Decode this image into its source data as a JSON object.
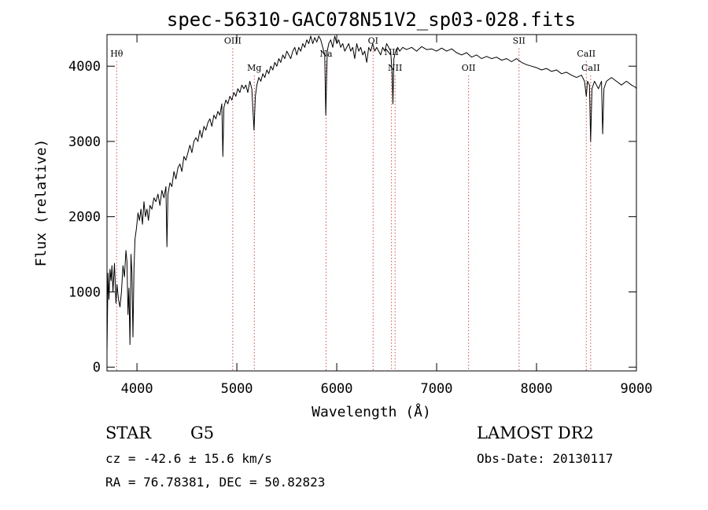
{
  "chart_data": {
    "type": "line",
    "title": "spec-56310-GAC078N51V2_sp03-028.fits",
    "xlabel": "Wavelength (Å)",
    "ylabel": "Flux (relative)",
    "xlim": [
      3700,
      9000
    ],
    "ylim": [
      -50,
      4420
    ],
    "x_ticks": [
      4000,
      5000,
      6000,
      7000,
      8000,
      9000
    ],
    "y_ticks": [
      0,
      1000,
      2000,
      3000,
      4000
    ],
    "grid": false,
    "series": [
      {
        "points": [
          [
            3700,
            200
          ],
          [
            3710,
            1250
          ],
          [
            3720,
            900
          ],
          [
            3730,
            1300
          ],
          [
            3740,
            1150
          ],
          [
            3750,
            1350
          ],
          [
            3760,
            1000
          ],
          [
            3775,
            1380
          ],
          [
            3790,
            850
          ],
          [
            3800,
            1100
          ],
          [
            3815,
            900
          ],
          [
            3830,
            800
          ],
          [
            3845,
            1000
          ],
          [
            3860,
            1350
          ],
          [
            3875,
            1200
          ],
          [
            3890,
            1550
          ],
          [
            3900,
            1400
          ],
          [
            3910,
            700
          ],
          [
            3920,
            1050
          ],
          [
            3930,
            300
          ],
          [
            3940,
            1500
          ],
          [
            3950,
            1250
          ],
          [
            3960,
            400
          ],
          [
            3970,
            1300
          ],
          [
            3980,
            1700
          ],
          [
            3995,
            1850
          ],
          [
            4010,
            2050
          ],
          [
            4025,
            1950
          ],
          [
            4040,
            2100
          ],
          [
            4055,
            1900
          ],
          [
            4070,
            2200
          ],
          [
            4085,
            2000
          ],
          [
            4100,
            2100
          ],
          [
            4115,
            1950
          ],
          [
            4130,
            2150
          ],
          [
            4150,
            2100
          ],
          [
            4170,
            2250
          ],
          [
            4190,
            2200
          ],
          [
            4210,
            2300
          ],
          [
            4230,
            2150
          ],
          [
            4250,
            2350
          ],
          [
            4270,
            2250
          ],
          [
            4290,
            2400
          ],
          [
            4300,
            1600
          ],
          [
            4310,
            2300
          ],
          [
            4330,
            2450
          ],
          [
            4350,
            2400
          ],
          [
            4370,
            2600
          ],
          [
            4390,
            2500
          ],
          [
            4410,
            2650
          ],
          [
            4430,
            2700
          ],
          [
            4450,
            2600
          ],
          [
            4470,
            2800
          ],
          [
            4490,
            2750
          ],
          [
            4510,
            2850
          ],
          [
            4530,
            2950
          ],
          [
            4550,
            2850
          ],
          [
            4570,
            3000
          ],
          [
            4590,
            3050
          ],
          [
            4610,
            3000
          ],
          [
            4630,
            3150
          ],
          [
            4650,
            3050
          ],
          [
            4670,
            3200
          ],
          [
            4690,
            3150
          ],
          [
            4710,
            3250
          ],
          [
            4730,
            3300
          ],
          [
            4750,
            3200
          ],
          [
            4770,
            3350
          ],
          [
            4790,
            3300
          ],
          [
            4810,
            3400
          ],
          [
            4830,
            3350
          ],
          [
            4850,
            3500
          ],
          [
            4860,
            2800
          ],
          [
            4870,
            3450
          ],
          [
            4890,
            3550
          ],
          [
            4910,
            3500
          ],
          [
            4930,
            3600
          ],
          [
            4950,
            3550
          ],
          [
            4970,
            3650
          ],
          [
            4990,
            3600
          ],
          [
            5010,
            3700
          ],
          [
            5030,
            3650
          ],
          [
            5050,
            3750
          ],
          [
            5070,
            3700
          ],
          [
            5090,
            3750
          ],
          [
            5110,
            3650
          ],
          [
            5130,
            3800
          ],
          [
            5150,
            3700
          ],
          [
            5172,
            3150
          ],
          [
            5185,
            3600
          ],
          [
            5200,
            3750
          ],
          [
            5220,
            3850
          ],
          [
            5240,
            3800
          ],
          [
            5260,
            3900
          ],
          [
            5280,
            3850
          ],
          [
            5300,
            3950
          ],
          [
            5320,
            3900
          ],
          [
            5340,
            4000
          ],
          [
            5360,
            3950
          ],
          [
            5380,
            4050
          ],
          [
            5400,
            4000
          ],
          [
            5420,
            4100
          ],
          [
            5440,
            4050
          ],
          [
            5460,
            4150
          ],
          [
            5480,
            4100
          ],
          [
            5500,
            4200
          ],
          [
            5520,
            4150
          ],
          [
            5540,
            4100
          ],
          [
            5560,
            4200
          ],
          [
            5580,
            4250
          ],
          [
            5600,
            4150
          ],
          [
            5620,
            4250
          ],
          [
            5640,
            4200
          ],
          [
            5660,
            4300
          ],
          [
            5680,
            4250
          ],
          [
            5700,
            4350
          ],
          [
            5720,
            4300
          ],
          [
            5740,
            4400
          ],
          [
            5760,
            4300
          ],
          [
            5780,
            4380
          ],
          [
            5800,
            4320
          ],
          [
            5820,
            4400
          ],
          [
            5840,
            4350
          ],
          [
            5860,
            4250
          ],
          [
            5880,
            4150
          ],
          [
            5890,
            3350
          ],
          [
            5896,
            3700
          ],
          [
            5905,
            4200
          ],
          [
            5920,
            4300
          ],
          [
            5940,
            4350
          ],
          [
            5960,
            4250
          ],
          [
            5980,
            4400
          ],
          [
            6000,
            4300
          ],
          [
            6020,
            4350
          ],
          [
            6040,
            4250
          ],
          [
            6060,
            4300
          ],
          [
            6080,
            4200
          ],
          [
            6100,
            4250
          ],
          [
            6120,
            4300
          ],
          [
            6140,
            4200
          ],
          [
            6160,
            4250
          ],
          [
            6180,
            4100
          ],
          [
            6200,
            4300
          ],
          [
            6220,
            4200
          ],
          [
            6240,
            4250
          ],
          [
            6260,
            4150
          ],
          [
            6280,
            4200
          ],
          [
            6300,
            4050
          ],
          [
            6320,
            4250
          ],
          [
            6340,
            4200
          ],
          [
            6360,
            4300
          ],
          [
            6380,
            4200
          ],
          [
            6400,
            4250
          ],
          [
            6420,
            4200
          ],
          [
            6440,
            4150
          ],
          [
            6460,
            4250
          ],
          [
            6480,
            4200
          ],
          [
            6500,
            4300
          ],
          [
            6520,
            4250
          ],
          [
            6540,
            4200
          ],
          [
            6555,
            3900
          ],
          [
            6563,
            3500
          ],
          [
            6572,
            4100
          ],
          [
            6590,
            4200
          ],
          [
            6610,
            4250
          ],
          [
            6630,
            4200
          ],
          [
            6660,
            4250
          ],
          [
            6700,
            4220
          ],
          [
            6750,
            4250
          ],
          [
            6800,
            4200
          ],
          [
            6850,
            4260
          ],
          [
            6900,
            4220
          ],
          [
            6950,
            4230
          ],
          [
            7000,
            4200
          ],
          [
            7050,
            4240
          ],
          [
            7100,
            4200
          ],
          [
            7150,
            4230
          ],
          [
            7200,
            4180
          ],
          [
            7250,
            4150
          ],
          [
            7300,
            4180
          ],
          [
            7350,
            4120
          ],
          [
            7400,
            4150
          ],
          [
            7450,
            4100
          ],
          [
            7500,
            4130
          ],
          [
            7550,
            4100
          ],
          [
            7600,
            4120
          ],
          [
            7650,
            4080
          ],
          [
            7700,
            4100
          ],
          [
            7750,
            4060
          ],
          [
            7800,
            4100
          ],
          [
            7850,
            4050
          ],
          [
            7900,
            4020
          ],
          [
            7950,
            4000
          ],
          [
            8000,
            3980
          ],
          [
            8050,
            3950
          ],
          [
            8100,
            3970
          ],
          [
            8150,
            3930
          ],
          [
            8200,
            3950
          ],
          [
            8250,
            3900
          ],
          [
            8300,
            3920
          ],
          [
            8350,
            3880
          ],
          [
            8400,
            3850
          ],
          [
            8450,
            3880
          ],
          [
            8480,
            3800
          ],
          [
            8498,
            3600
          ],
          [
            8510,
            3800
          ],
          [
            8530,
            3750
          ],
          [
            8542,
            3000
          ],
          [
            8555,
            3700
          ],
          [
            8580,
            3800
          ],
          [
            8600,
            3750
          ],
          [
            8620,
            3700
          ],
          [
            8650,
            3800
          ],
          [
            8662,
            3100
          ],
          [
            8675,
            3700
          ],
          [
            8700,
            3800
          ],
          [
            8750,
            3850
          ],
          [
            8800,
            3800
          ],
          [
            8850,
            3750
          ],
          [
            8900,
            3800
          ],
          [
            8950,
            3750
          ],
          [
            8990,
            3720
          ],
          [
            9000,
            3700
          ]
        ]
      }
    ],
    "lines": [
      {
        "label": "Hθ",
        "x": 3797,
        "label_y": 4130
      },
      {
        "label": "OIII",
        "x": 4959,
        "label_y": 4300
      },
      {
        "label": "Mg",
        "x": 5175,
        "label_y": 3940
      },
      {
        "label": "Na",
        "x": 5893,
        "label_y": 4130
      },
      {
        "label": "OI",
        "x": 6364,
        "label_y": 4300
      },
      {
        "label": "NII",
        "x": 6548,
        "label_y": 4150
      },
      {
        "label": "NII",
        "x": 6584,
        "label_y": 3940
      },
      {
        "label": "OII",
        "x": 7320,
        "label_y": 3940
      },
      {
        "label": "SII",
        "x": 7825,
        "label_y": 4300
      },
      {
        "label": "CaII",
        "x": 8498,
        "label_y": 4130
      },
      {
        "label": "CaII",
        "x": 8542,
        "label_y": 3940
      }
    ]
  },
  "info": {
    "object_type": "STAR",
    "subclass": "G5",
    "survey": "LAMOST DR2",
    "cz": "cz = -42.6 ± 15.6 km/s",
    "obs_date": "Obs-Date: 20130117",
    "radec": "RA =  76.78381, DEC =  50.82823"
  }
}
